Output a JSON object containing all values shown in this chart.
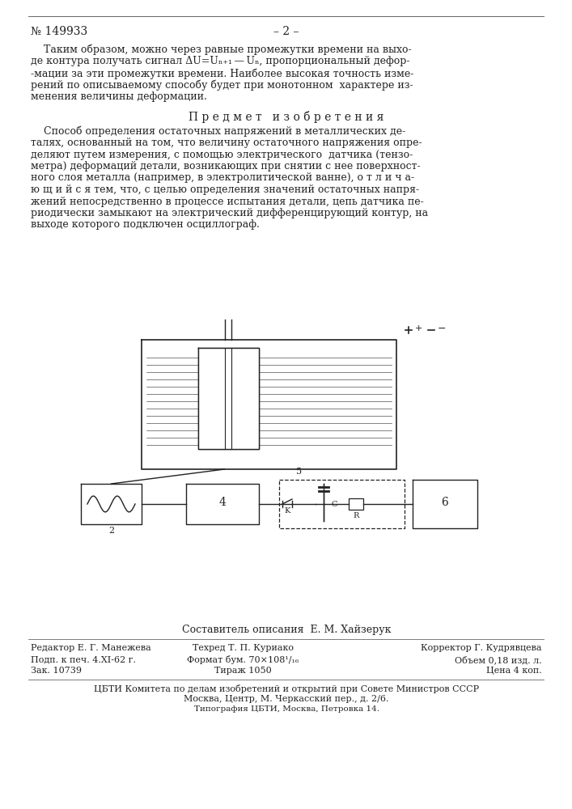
{
  "page_number": "149933",
  "page_num_right": "– 2 –",
  "bg_color": "#ffffff",
  "text_color": "#1a1a1a",
  "section_title": "П р е д м е т   и з о б р е т е н и я",
  "para1_lines": [
    "    Таким образом, можно через равные промежутки времени на выхо-",
    "де контура получать сигнал ΔU=Uₙ₊₁ — Uₙ, пропорциональный дефор-",
    "­мации за эти промежутки времени. Наиболее высокая точность изме-",
    "рений по описываемому способу будет при монотонном  характере из-",
    "менения величины деформации."
  ],
  "para2_lines": [
    "    Способ определения остаточных напряжений в металлических де-",
    "талях, основанный на том, что величину остаточного напряжения опре-",
    "деляют путем измерения, с помощью электрического  датчика (тензо-",
    "метра) деформаций детали, возникающих при снятии с нее поверхност-",
    "ного слоя металла (например, в электролитической ванне), о т л и ч а-",
    "ю щ и й с я тем, что, с целью определения значений остаточных напря-",
    "жений непосредственно в процессе испытания детали, цепь датчика пе-",
    "риодически замыкают на электрический дифференцирующий контур, на",
    "выходе которого подключен осциллограф."
  ],
  "footer_composer": "Составитель описания  Е. М. Хайзерук",
  "footer_col1_label": "Редактор Е. Г. Манежева",
  "footer_col2_label": "Техред Т. П. Куриако",
  "footer_col3_label": "Корректор Г. Кудрявцева",
  "footer_row2_col1": "Подп. к печ. 4.XI-62 г.",
  "footer_row2_col2": "Формат бум. 70×108¹/₁₆",
  "footer_row2_col3": "Объем 0,18 изд. л.",
  "footer_row3_col1": "Зак. 10739",
  "footer_row3_col2": "Тираж 1050",
  "footer_row3_col3": "Цена 4 коп.",
  "footer_cbti1": "ЦБТИ Комитета по делам изобретений и открытий при Совете Министров СССР",
  "footer_cbti2": "Москва, Центр, М. Черкасский пер., д. 2/6.",
  "footer_print": "Типография ЦБТИ, Москва, Петровка 14."
}
